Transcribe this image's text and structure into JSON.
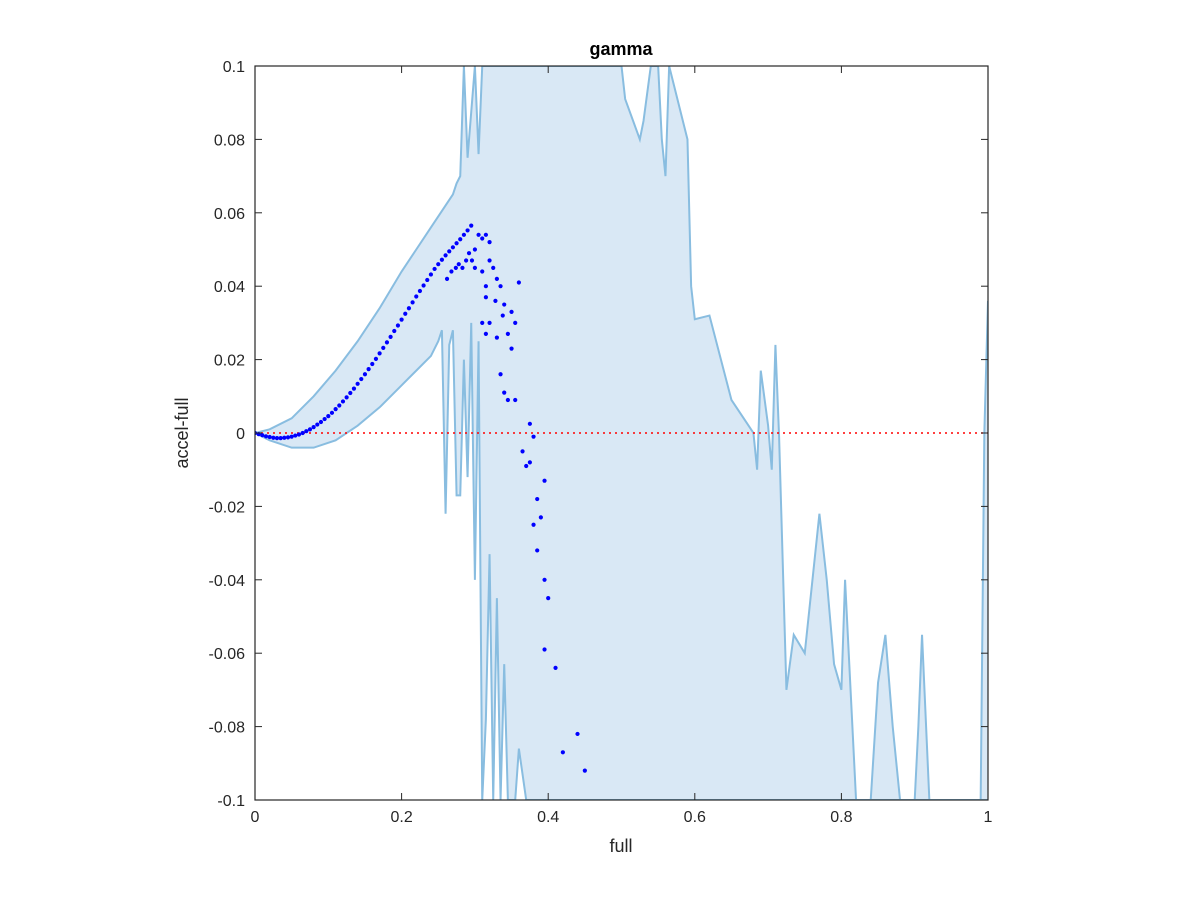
{
  "chart_data": {
    "type": "scatter",
    "title": "gamma",
    "xlabel": "full",
    "ylabel": "accel-full",
    "xlim": [
      0,
      1
    ],
    "ylim": [
      -0.1,
      0.1
    ],
    "xticks": [
      "0",
      "0.2",
      "0.4",
      "0.6",
      "0.8",
      "1"
    ],
    "yticks": [
      "-0.1",
      "-0.08",
      "-0.06",
      "-0.04",
      "-0.02",
      "0",
      "0.02",
      "0.04",
      "0.06",
      "0.08",
      "0.1"
    ],
    "grid": false,
    "reference_line": {
      "y": 0,
      "style": "dotted",
      "color": "#ff0000"
    },
    "colors": {
      "points": "#0000ff",
      "band_fill": "#d9e8f5",
      "band_line": "#89bde0",
      "axes": "#262626"
    },
    "band": {
      "upper": [
        [
          0,
          0
        ],
        [
          0.02,
          0.001
        ],
        [
          0.05,
          0.004
        ],
        [
          0.08,
          0.01
        ],
        [
          0.11,
          0.017
        ],
        [
          0.14,
          0.025
        ],
        [
          0.17,
          0.034
        ],
        [
          0.2,
          0.044
        ],
        [
          0.22,
          0.05
        ],
        [
          0.24,
          0.056
        ],
        [
          0.26,
          0.062
        ],
        [
          0.27,
          0.065
        ],
        [
          0.275,
          0.068
        ],
        [
          0.28,
          0.07
        ],
        [
          0.285,
          0.1
        ],
        [
          0.29,
          0.075
        ],
        [
          0.3,
          0.1
        ],
        [
          0.305,
          0.076
        ],
        [
          0.31,
          0.1
        ],
        [
          0.32,
          0.1
        ],
        [
          0.5,
          0.1
        ],
        [
          0.505,
          0.091
        ],
        [
          0.525,
          0.08
        ],
        [
          0.53,
          0.085
        ],
        [
          0.54,
          0.1
        ],
        [
          0.55,
          0.1
        ],
        [
          0.555,
          0.08
        ],
        [
          0.56,
          0.07
        ],
        [
          0.565,
          0.1
        ],
        [
          0.59,
          0.08
        ],
        [
          0.595,
          0.04
        ],
        [
          0.6,
          0.031
        ],
        [
          0.62,
          0.032
        ],
        [
          0.65,
          0.009
        ],
        [
          0.67,
          0.003
        ],
        [
          0.68,
          0
        ],
        [
          0.685,
          -0.01
        ],
        [
          0.69,
          0.017
        ],
        [
          0.7,
          0.002
        ],
        [
          0.705,
          -0.01
        ],
        [
          0.71,
          0.024
        ],
        [
          0.715,
          -0.001
        ],
        [
          0.725,
          -0.07
        ],
        [
          0.735,
          -0.055
        ],
        [
          0.75,
          -0.06
        ],
        [
          0.77,
          -0.022
        ],
        [
          0.78,
          -0.04
        ],
        [
          0.79,
          -0.063
        ],
        [
          0.8,
          -0.07
        ],
        [
          0.805,
          -0.04
        ],
        [
          0.81,
          -0.06
        ],
        [
          0.82,
          -0.1
        ],
        [
          0.84,
          -0.1
        ],
        [
          0.85,
          -0.068
        ],
        [
          0.86,
          -0.055
        ],
        [
          0.87,
          -0.08
        ],
        [
          0.88,
          -0.1
        ],
        [
          0.9,
          -0.1
        ],
        [
          0.905,
          -0.08
        ],
        [
          0.91,
          -0.055
        ],
        [
          0.92,
          -0.1
        ],
        [
          0.99,
          -0.1
        ],
        [
          0.995,
          0
        ],
        [
          1,
          0.036
        ]
      ],
      "lower": [
        [
          0,
          0
        ],
        [
          0.02,
          -0.002
        ],
        [
          0.05,
          -0.004
        ],
        [
          0.08,
          -0.004
        ],
        [
          0.11,
          -0.002
        ],
        [
          0.14,
          0.002
        ],
        [
          0.17,
          0.007
        ],
        [
          0.2,
          0.013
        ],
        [
          0.22,
          0.017
        ],
        [
          0.24,
          0.021
        ],
        [
          0.25,
          0.025
        ],
        [
          0.255,
          0.028
        ],
        [
          0.26,
          -0.022
        ],
        [
          0.265,
          0.024
        ],
        [
          0.27,
          0.028
        ],
        [
          0.275,
          -0.017
        ],
        [
          0.28,
          -0.017
        ],
        [
          0.285,
          0.02
        ],
        [
          0.29,
          -0.012
        ],
        [
          0.295,
          0.03
        ],
        [
          0.3,
          -0.04
        ],
        [
          0.305,
          0.025
        ],
        [
          0.31,
          -0.1
        ],
        [
          0.315,
          -0.078
        ],
        [
          0.32,
          -0.033
        ],
        [
          0.325,
          -0.1
        ],
        [
          0.33,
          -0.045
        ],
        [
          0.335,
          -0.1
        ],
        [
          0.34,
          -0.063
        ],
        [
          0.345,
          -0.1
        ],
        [
          0.355,
          -0.1
        ],
        [
          0.36,
          -0.086
        ],
        [
          0.37,
          -0.1
        ],
        [
          0.99,
          -0.1
        ],
        [
          1,
          -0.1
        ]
      ]
    },
    "series": [
      {
        "points": [
          [
            0,
            0
          ],
          [
            0.005,
            -0.0003
          ],
          [
            0.01,
            -0.0006
          ],
          [
            0.015,
            -0.0009
          ],
          [
            0.02,
            -0.0011
          ],
          [
            0.025,
            -0.0013
          ],
          [
            0.03,
            -0.0014
          ],
          [
            0.035,
            -0.0014
          ],
          [
            0.04,
            -0.0013
          ],
          [
            0.045,
            -0.0012
          ],
          [
            0.05,
            -0.001
          ],
          [
            0.055,
            -0.0007
          ],
          [
            0.06,
            -0.0004
          ],
          [
            0.065,
            0
          ],
          [
            0.07,
            0.0005
          ],
          [
            0.075,
            0.001
          ],
          [
            0.08,
            0.0016
          ],
          [
            0.085,
            0.0023
          ],
          [
            0.09,
            0.003
          ],
          [
            0.095,
            0.0038
          ],
          [
            0.1,
            0.0046
          ],
          [
            0.105,
            0.0055
          ],
          [
            0.11,
            0.0065
          ],
          [
            0.115,
            0.0075
          ],
          [
            0.12,
            0.0086
          ],
          [
            0.125,
            0.0097
          ],
          [
            0.13,
            0.0109
          ],
          [
            0.135,
            0.0121
          ],
          [
            0.14,
            0.0134
          ],
          [
            0.145,
            0.0147
          ],
          [
            0.15,
            0.016
          ],
          [
            0.155,
            0.0174
          ],
          [
            0.16,
            0.0188
          ],
          [
            0.165,
            0.0202
          ],
          [
            0.17,
            0.0217
          ],
          [
            0.175,
            0.0232
          ],
          [
            0.18,
            0.0247
          ],
          [
            0.185,
            0.0262
          ],
          [
            0.19,
            0.0278
          ],
          [
            0.195,
            0.0293
          ],
          [
            0.2,
            0.0309
          ],
          [
            0.205,
            0.0325
          ],
          [
            0.21,
            0.034
          ],
          [
            0.215,
            0.0356
          ],
          [
            0.22,
            0.0372
          ],
          [
            0.225,
            0.0387
          ],
          [
            0.23,
            0.0402
          ],
          [
            0.235,
            0.0417
          ],
          [
            0.24,
            0.0432
          ],
          [
            0.245,
            0.0447
          ],
          [
            0.25,
            0.046
          ],
          [
            0.255,
            0.0472
          ],
          [
            0.26,
            0.0484
          ],
          [
            0.265,
            0.0495
          ],
          [
            0.27,
            0.0506
          ],
          [
            0.275,
            0.0517
          ],
          [
            0.28,
            0.0528
          ],
          [
            0.285,
            0.054
          ],
          [
            0.29,
            0.0552
          ],
          [
            0.295,
            0.0565
          ],
          [
            0.262,
            0.042
          ],
          [
            0.268,
            0.044
          ],
          [
            0.274,
            0.045
          ],
          [
            0.278,
            0.046
          ],
          [
            0.283,
            0.045
          ],
          [
            0.288,
            0.047
          ],
          [
            0.292,
            0.049
          ],
          [
            0.296,
            0.047
          ],
          [
            0.3,
            0.05
          ],
          [
            0.305,
            0.054
          ],
          [
            0.31,
            0.053
          ],
          [
            0.315,
            0.054
          ],
          [
            0.32,
            0.052
          ],
          [
            0.3,
            0.045
          ],
          [
            0.31,
            0.044
          ],
          [
            0.315,
            0.04
          ],
          [
            0.32,
            0.047
          ],
          [
            0.325,
            0.045
          ],
          [
            0.33,
            0.042
          ],
          [
            0.335,
            0.04
          ],
          [
            0.315,
            0.037
          ],
          [
            0.328,
            0.036
          ],
          [
            0.34,
            0.035
          ],
          [
            0.35,
            0.033
          ],
          [
            0.31,
            0.03
          ],
          [
            0.32,
            0.03
          ],
          [
            0.338,
            0.032
          ],
          [
            0.355,
            0.03
          ],
          [
            0.36,
            0.041
          ],
          [
            0.315,
            0.027
          ],
          [
            0.33,
            0.026
          ],
          [
            0.345,
            0.027
          ],
          [
            0.35,
            0.023
          ],
          [
            0.335,
            0.016
          ],
          [
            0.34,
            0.011
          ],
          [
            0.345,
            0.009
          ],
          [
            0.355,
            0.009
          ],
          [
            0.365,
            -0.005
          ],
          [
            0.37,
            -0.009
          ],
          [
            0.375,
            0.0025
          ],
          [
            0.375,
            -0.008
          ],
          [
            0.38,
            -0.001
          ],
          [
            0.385,
            -0.018
          ],
          [
            0.38,
            -0.025
          ],
          [
            0.39,
            -0.023
          ],
          [
            0.385,
            -0.032
          ],
          [
            0.395,
            -0.013
          ],
          [
            0.395,
            -0.04
          ],
          [
            0.4,
            -0.045
          ],
          [
            0.395,
            -0.059
          ],
          [
            0.41,
            -0.064
          ],
          [
            0.42,
            -0.087
          ],
          [
            0.44,
            -0.082
          ],
          [
            0.45,
            -0.092
          ]
        ]
      }
    ]
  }
}
